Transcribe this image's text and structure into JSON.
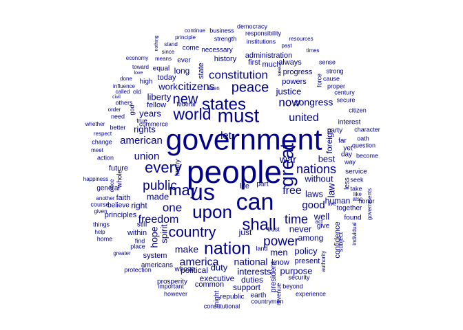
{
  "word_color": "#00008B",
  "words": [
    {
      "text": "people"
    },
    {
      "text": "government"
    },
    {
      "text": "us"
    },
    {
      "text": "can"
    },
    {
      "text": "must"
    },
    {
      "text": "upon"
    },
    {
      "text": "great"
    },
    {
      "text": "nation"
    },
    {
      "text": "states"
    },
    {
      "text": "shall"
    },
    {
      "text": "world"
    },
    {
      "text": "may"
    },
    {
      "text": "peace"
    },
    {
      "text": "every"
    },
    {
      "text": "country"
    },
    {
      "text": "power"
    },
    {
      "text": "new"
    },
    {
      "text": "constitution"
    },
    {
      "text": "public"
    },
    {
      "text": "time"
    },
    {
      "text": "one"
    },
    {
      "text": "nations"
    },
    {
      "text": "citizens"
    },
    {
      "text": "united"
    },
    {
      "text": "america"
    },
    {
      "text": "now"
    },
    {
      "text": "freedom"
    },
    {
      "text": "free"
    },
    {
      "text": "let"
    },
    {
      "text": "war"
    },
    {
      "text": "union"
    },
    {
      "text": "american"
    },
    {
      "text": "national"
    },
    {
      "text": "made"
    },
    {
      "text": "good"
    },
    {
      "text": "make"
    },
    {
      "text": "without"
    },
    {
      "text": "justice"
    },
    {
      "text": "congress"
    },
    {
      "text": "years"
    },
    {
      "text": "rights"
    },
    {
      "text": "work"
    },
    {
      "text": "liberty"
    },
    {
      "text": "men"
    },
    {
      "text": "interests"
    },
    {
      "text": "law"
    },
    {
      "text": "laws"
    },
    {
      "text": "best"
    },
    {
      "text": "well"
    },
    {
      "text": "never"
    },
    {
      "text": "hope"
    },
    {
      "text": "spirit"
    },
    {
      "text": "duty"
    },
    {
      "text": "right"
    },
    {
      "text": "policy"
    },
    {
      "text": "human"
    },
    {
      "text": "among"
    },
    {
      "text": "foreign"
    },
    {
      "text": "purpose"
    },
    {
      "text": "political"
    },
    {
      "text": "executive"
    },
    {
      "text": "duties"
    },
    {
      "text": "support"
    },
    {
      "text": "history"
    },
    {
      "text": "administration"
    },
    {
      "text": "long"
    },
    {
      "text": "today"
    },
    {
      "text": "fellow"
    },
    {
      "text": "principles"
    },
    {
      "text": "progress"
    },
    {
      "text": "confidence"
    },
    {
      "text": "present"
    },
    {
      "text": "know"
    },
    {
      "text": "just"
    },
    {
      "text": "life"
    },
    {
      "text": "part"
    },
    {
      "text": "state"
    },
    {
      "text": "first"
    },
    {
      "text": "much"
    },
    {
      "text": "powers"
    },
    {
      "text": "always"
    },
    {
      "text": "necessary"
    },
    {
      "text": "come"
    },
    {
      "text": "ever"
    },
    {
      "text": "equal"
    },
    {
      "text": "high"
    },
    {
      "text": "faith"
    },
    {
      "text": "future"
    },
    {
      "text": "within"
    },
    {
      "text": "system"
    },
    {
      "text": "president"
    },
    {
      "text": "republic"
    },
    {
      "text": "common"
    },
    {
      "text": "prosperity"
    },
    {
      "text": "americans"
    },
    {
      "text": "whose"
    },
    {
      "text": "still"
    },
    {
      "text": "believe"
    },
    {
      "text": "general"
    },
    {
      "text": "whole"
    },
    {
      "text": "many"
    },
    {
      "text": "party"
    },
    {
      "text": "far"
    },
    {
      "text": "yet"
    },
    {
      "text": "day"
    },
    {
      "text": "interest"
    },
    {
      "text": "service"
    },
    {
      "text": "less"
    },
    {
      "text": "together"
    },
    {
      "text": "take"
    },
    {
      "text": "seek"
    },
    {
      "text": "found"
    },
    {
      "text": "give"
    },
    {
      "text": "trust"
    },
    {
      "text": "land"
    },
    {
      "text": "security"
    },
    {
      "text": "earth"
    },
    {
      "text": "might"
    },
    {
      "text": "important"
    },
    {
      "text": "protection"
    },
    {
      "text": "however"
    },
    {
      "text": "constitutional"
    },
    {
      "text": "countrymen"
    },
    {
      "text": "experience"
    },
    {
      "text": "beyond"
    },
    {
      "text": "revenue"
    },
    {
      "text": "authority"
    },
    {
      "text": "act"
    },
    {
      "text": "live"
    },
    {
      "text": "subject"
    },
    {
      "text": "individual"
    },
    {
      "text": "governments"
    },
    {
      "text": "also"
    },
    {
      "text": "like"
    },
    {
      "text": "honor"
    },
    {
      "text": "way"
    },
    {
      "text": "become"
    },
    {
      "text": "question"
    },
    {
      "text": "oath"
    },
    {
      "text": "character"
    },
    {
      "text": "citizen"
    },
    {
      "text": "secure"
    },
    {
      "text": "century"
    },
    {
      "text": "proper"
    },
    {
      "text": "cause"
    },
    {
      "text": "strong"
    },
    {
      "text": "sense"
    },
    {
      "text": "times"
    },
    {
      "text": "past"
    },
    {
      "text": "resources"
    },
    {
      "text": "responsibility"
    },
    {
      "text": "democracy"
    },
    {
      "text": "business"
    },
    {
      "text": "strength"
    },
    {
      "text": "institutions"
    },
    {
      "text": "continue"
    },
    {
      "text": "principle"
    },
    {
      "text": "stand"
    },
    {
      "text": "since"
    },
    {
      "text": "nothing"
    },
    {
      "text": "economy"
    },
    {
      "text": "means"
    },
    {
      "text": "toward"
    },
    {
      "text": "love"
    },
    {
      "text": "done"
    },
    {
      "text": "influence"
    },
    {
      "text": "called"
    },
    {
      "text": "old"
    },
    {
      "text": "civil"
    },
    {
      "text": "others"
    },
    {
      "text": "god"
    },
    {
      "text": "order"
    },
    {
      "text": "need"
    },
    {
      "text": "true"
    },
    {
      "text": "whether"
    },
    {
      "text": "respect"
    },
    {
      "text": "better"
    },
    {
      "text": "change"
    },
    {
      "text": "commerce"
    },
    {
      "text": "meet"
    },
    {
      "text": "action"
    },
    {
      "text": "happiness"
    },
    {
      "text": "office"
    },
    {
      "text": "another"
    },
    {
      "text": "course"
    },
    {
      "text": "given"
    },
    {
      "text": "things"
    },
    {
      "text": "help"
    },
    {
      "text": "home"
    },
    {
      "text": "find"
    },
    {
      "text": "place"
    },
    {
      "text": "greater"
    },
    {
      "text": "federal"
    },
    {
      "text": "even"
    },
    {
      "text": "see"
    },
    {
      "text": "force"
    }
  ]
}
